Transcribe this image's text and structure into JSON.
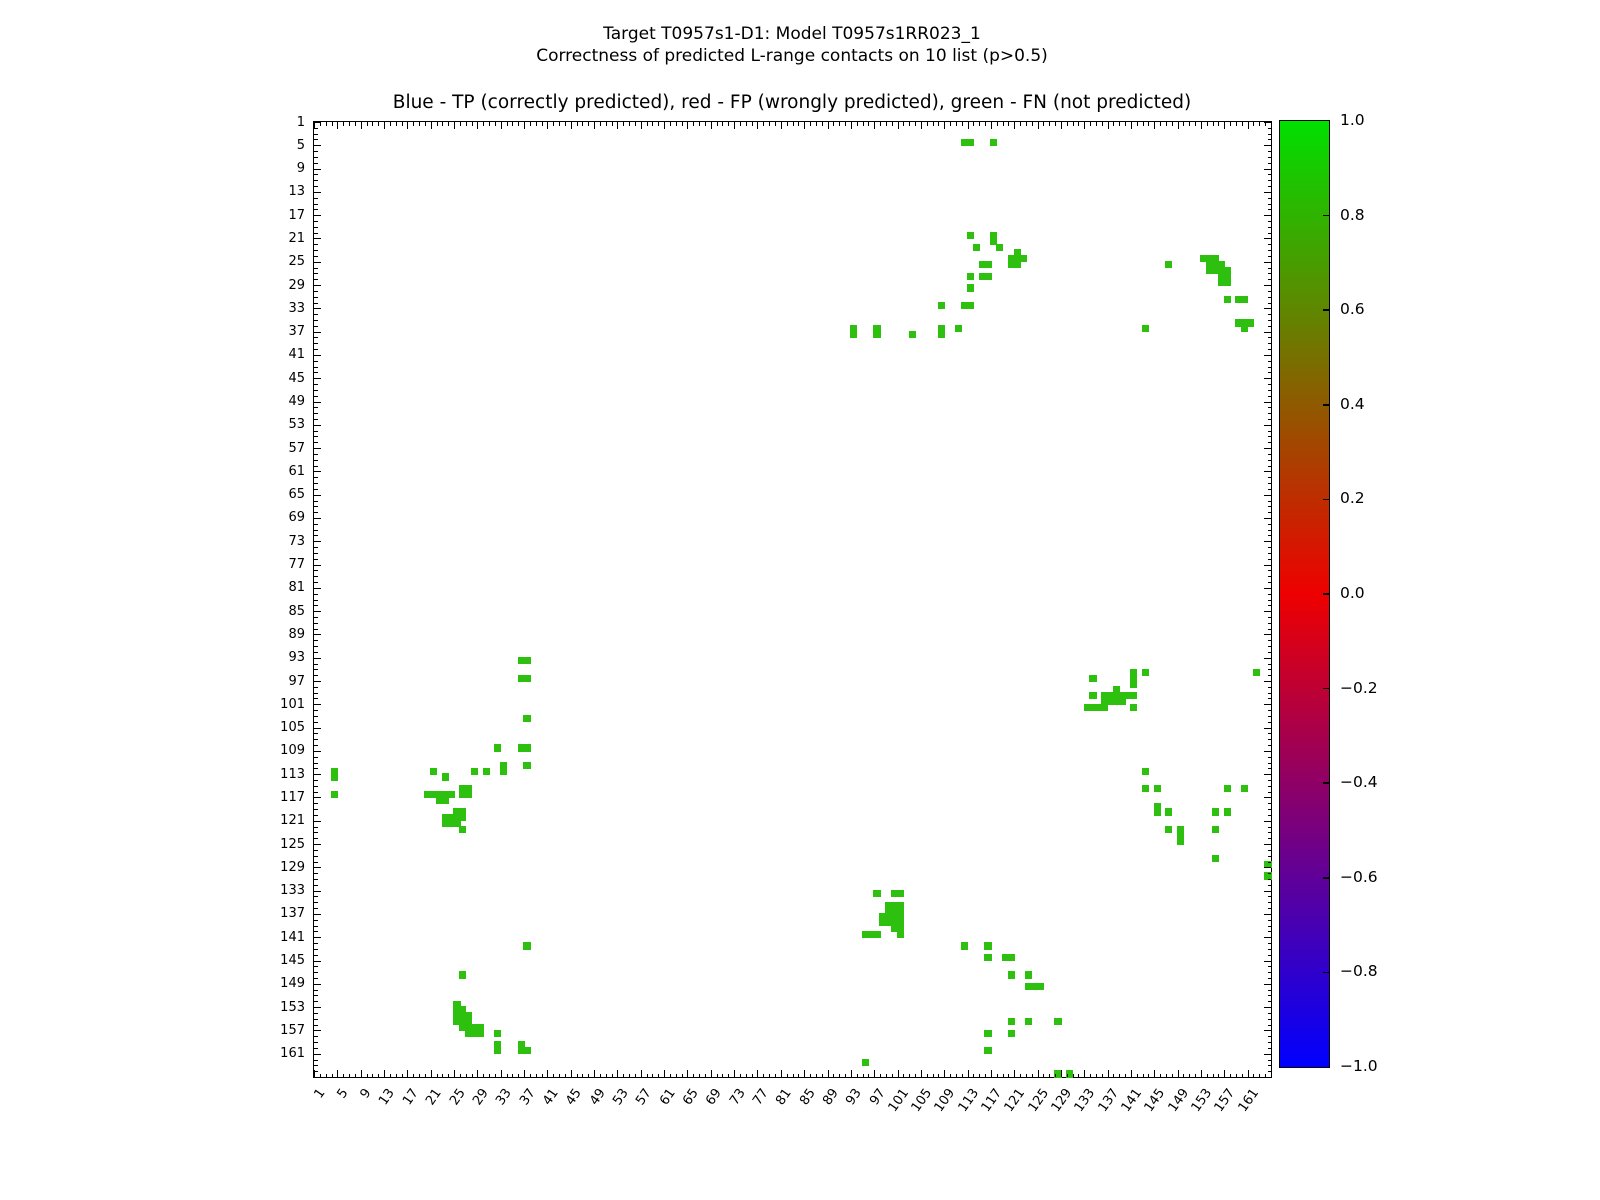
{
  "title_line1": "Target T0957s1-D1: Model T0957s1RR023_1",
  "title_line2": "Correctness of predicted L-range contacts on 10 list (p>0.5)",
  "axes_title": "Blue - TP (correctly predicted), red - FP (wrongly predicted), green - FN (not predicted)",
  "chart_data": {
    "type": "heatmap",
    "description": "Protein residue-residue contact map; green squares are FN (not predicted) contacts",
    "n_cells": 164,
    "axis_range": [
      1,
      165
    ],
    "x_tick_labels": [
      1,
      5,
      9,
      13,
      17,
      21,
      25,
      29,
      33,
      37,
      41,
      45,
      49,
      53,
      57,
      61,
      65,
      69,
      73,
      77,
      81,
      85,
      89,
      93,
      97,
      101,
      105,
      109,
      113,
      117,
      121,
      125,
      129,
      133,
      137,
      141,
      145,
      149,
      153,
      157,
      161
    ],
    "y_tick_labels": [
      1,
      5,
      9,
      13,
      17,
      21,
      25,
      29,
      33,
      37,
      41,
      45,
      49,
      53,
      57,
      61,
      65,
      69,
      73,
      77,
      81,
      85,
      89,
      93,
      97,
      101,
      105,
      109,
      113,
      117,
      121,
      125,
      129,
      133,
      137,
      141,
      145,
      149,
      153,
      157,
      161
    ],
    "legend": {
      "tp_color_name": "blue",
      "fp_color_name": "red",
      "fn_color_name": "green"
    },
    "colors": {
      "fn_green": "#2dc00e",
      "cbar_top": "#00e000",
      "cbar_mid": "#ee0000",
      "cbar_bottom": "#0000ff",
      "axis": "#000000"
    },
    "colorbar": {
      "tick_labels": [
        "1.0",
        "0.8",
        "0.6",
        "0.4",
        "0.2",
        "0.0",
        "−0.2",
        "−0.4",
        "−0.6",
        "−0.8",
        "−1.0"
      ],
      "value_range": [
        -1.0,
        1.0
      ],
      "gradient_stops": [
        [
          "0%",
          "#00e000"
        ],
        [
          "50%",
          "#ee0000"
        ],
        [
          "100%",
          "#0000ff"
        ]
      ]
    },
    "fn_cells": [
      [
        4,
        112,
        2,
        1
      ],
      [
        4,
        117,
        1,
        1
      ],
      [
        20,
        113,
        1,
        1
      ],
      [
        20,
        117,
        1,
        2
      ],
      [
        22,
        114,
        1,
        1
      ],
      [
        22,
        118,
        1,
        1
      ],
      [
        23,
        121,
        1,
        1
      ],
      [
        24,
        120,
        3,
        1
      ],
      [
        24,
        153,
        3,
        1
      ],
      [
        25,
        115,
        2,
        1
      ],
      [
        25,
        120,
        2,
        1
      ],
      [
        25,
        147,
        1,
        1
      ],
      [
        25,
        154,
        3,
        1
      ],
      [
        26,
        154,
        4,
        1
      ],
      [
        27,
        113,
        1,
        1
      ],
      [
        27,
        115,
        2,
        1
      ],
      [
        27,
        156,
        2,
        1
      ],
      [
        28,
        156,
        2,
        1
      ],
      [
        29,
        113,
        1,
        1
      ],
      [
        31,
        157,
        1,
        1
      ],
      [
        31,
        159,
        2,
        1
      ],
      [
        32,
        108,
        1,
        1
      ],
      [
        32,
        112,
        2,
        1
      ],
      [
        35,
        159,
        3,
        1
      ],
      [
        36,
        93,
        1,
        2
      ],
      [
        36,
        97,
        1,
        2
      ],
      [
        36,
        108,
        1,
        2
      ],
      [
        36,
        111,
        1,
        1
      ],
      [
        36,
        143,
        1,
        1
      ],
      [
        36,
        160,
        1,
        1
      ],
      [
        37,
        103,
        1,
        1
      ],
      [
        93,
        36,
        2,
        1
      ],
      [
        95,
        141,
        1,
        3
      ],
      [
        95,
        143,
        1,
        1
      ],
      [
        95,
        162,
        1,
        1
      ],
      [
        96,
        36,
        2,
        1
      ],
      [
        96,
        134,
        1,
        1
      ],
      [
        98,
        138,
        1,
        1
      ],
      [
        99,
        134,
        1,
        1
      ],
      [
        99,
        136,
        6,
        1
      ],
      [
        100,
        136,
        4,
        1
      ],
      [
        101,
        133,
        4,
        1
      ],
      [
        101,
        141,
        1,
        1
      ],
      [
        103,
        37,
        1,
        1
      ],
      [
        108,
        32,
        1,
        1
      ],
      [
        108,
        36,
        2,
        1
      ],
      [
        111,
        33,
        1,
        2
      ],
      [
        111,
        37,
        1,
        1
      ],
      [
        112,
        4,
        1,
        2
      ],
      [
        112,
        21,
        1,
        1
      ],
      [
        112,
        28,
        1,
        1
      ],
      [
        112,
        30,
        1,
        1
      ],
      [
        112,
        143,
        1,
        1
      ],
      [
        113,
        23,
        1,
        1
      ],
      [
        115,
        26,
        1,
        2
      ],
      [
        115,
        27,
        1,
        2
      ],
      [
        115,
        143,
        1,
        1
      ],
      [
        115,
        145,
        1,
        1
      ],
      [
        115,
        157,
        1,
        1
      ],
      [
        115,
        160,
        1,
        1
      ],
      [
        116,
        4,
        1,
        1
      ],
      [
        116,
        20,
        5,
        1
      ],
      [
        117,
        22,
        2,
        1
      ],
      [
        118,
        145,
        1,
        2
      ],
      [
        119,
        25,
        2,
        1
      ],
      [
        119,
        147,
        1,
        1
      ],
      [
        119,
        155,
        1,
        1
      ],
      [
        119,
        157,
        1,
        1
      ],
      [
        120,
        23,
        4,
        1
      ],
      [
        121,
        23,
        3,
        1
      ],
      [
        122,
        26,
        1,
        1
      ],
      [
        122,
        147,
        1,
        1
      ],
      [
        122,
        149,
        1,
        3
      ],
      [
        122,
        155,
        1,
        1
      ],
      [
        127,
        155,
        1,
        1
      ],
      [
        128,
        164,
        1,
        1
      ],
      [
        130,
        164,
        1,
        1
      ],
      [
        133,
        97,
        1,
        1
      ],
      [
        133,
        100,
        1,
        1
      ],
      [
        133,
        101,
        1,
        1
      ],
      [
        135,
        99,
        2,
        4
      ],
      [
        135,
        101,
        1,
        6
      ],
      [
        137,
        98,
        1,
        2
      ],
      [
        139,
        100,
        1,
        1
      ],
      [
        140,
        95,
        3,
        1
      ],
      [
        142,
        37,
        1,
        1
      ],
      [
        142,
        112,
        1,
        1
      ],
      [
        142,
        116,
        1,
        1
      ],
      [
        144,
        116,
        1,
        1
      ],
      [
        144,
        119,
        2,
        1
      ],
      [
        147,
        26,
        1,
        1
      ],
      [
        147,
        120,
        1,
        1
      ],
      [
        147,
        123,
        1,
        1
      ],
      [
        149,
        123,
        3,
        1
      ],
      [
        152,
        25,
        1,
        1
      ],
      [
        153,
        25,
        2,
        1
      ],
      [
        154,
        25,
        3,
        1
      ],
      [
        155,
        25,
        3,
        1
      ],
      [
        155,
        120,
        1,
        1
      ],
      [
        155,
        123,
        1,
        1
      ],
      [
        155,
        128,
        1,
        1
      ],
      [
        156,
        26,
        4,
        1
      ],
      [
        157,
        27,
        3,
        1
      ],
      [
        157,
        32,
        1,
        1
      ],
      [
        157,
        116,
        1,
        1
      ],
      [
        157,
        120,
        1,
        1
      ],
      [
        159,
        32,
        1,
        2
      ],
      [
        159,
        36,
        1,
        2
      ],
      [
        160,
        37,
        1,
        1
      ],
      [
        160,
        116,
        1,
        1
      ],
      [
        162,
        95,
        1,
        1
      ],
      [
        164,
        128,
        1,
        1
      ],
      [
        164,
        130,
        1,
        1
      ]
    ]
  }
}
